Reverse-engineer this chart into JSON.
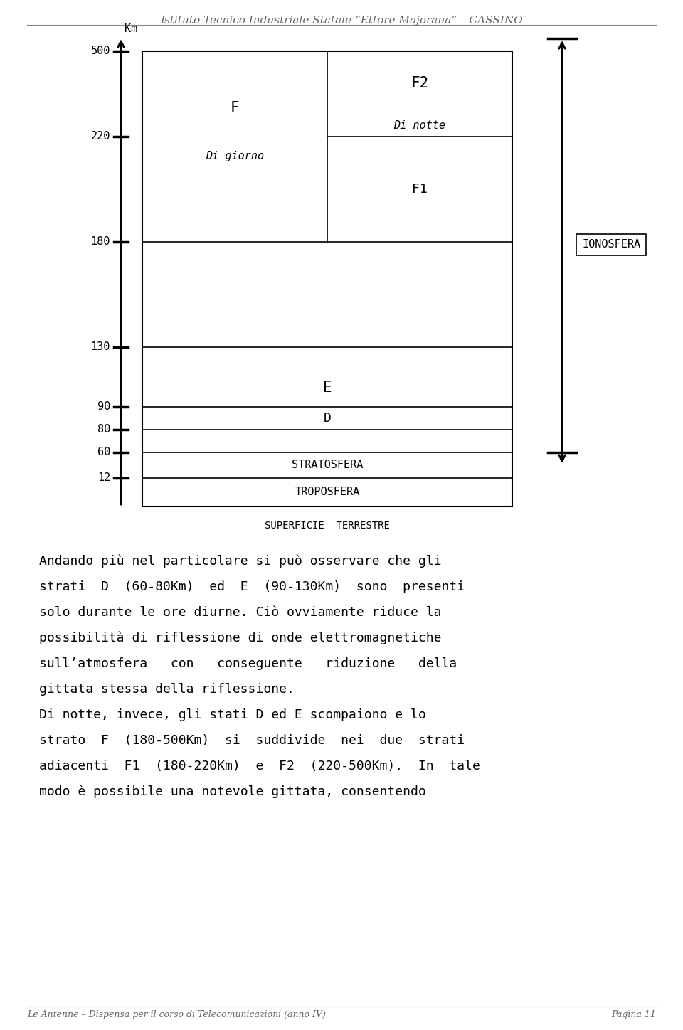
{
  "header": "Istituto Tecnico Industriale Statale “Ettore Majorana” – CASSINO",
  "footer_left": "Le Antenne – Dispensa per il corso di Telecomunicazioni (anno IV)",
  "footer_right": "Pagina 11",
  "km_label": "Km",
  "ionosfera_label": "IONOSFERA",
  "surf_label": "SUPERFICIE  TERRESTRE",
  "paragraphs": [
    "Andando più nel particolare si può osservare che gli",
    "strati  D  (60-80Km)  ed  E  (90-130Km)  sono  presenti",
    "solo durante le ore diurne. Ciò ovviamente riduce la",
    "possibilità di riflessione di onde elettromagnetiche",
    "sull’atmosfera   con   conseguente   riduzione   della",
    "gittata stessa della riflessione.",
    "Di notte, invece, gli stati D ed E scompaiono e lo",
    "strato  F  (180-500Km)  si  suddivide  nei  due  strati",
    "adiacenti  F1  (180-220Km)  e  F2  (220-500Km).  In  tale",
    "modo è possibile una notevole gittata, consentendo"
  ],
  "background_color": "#ffffff"
}
